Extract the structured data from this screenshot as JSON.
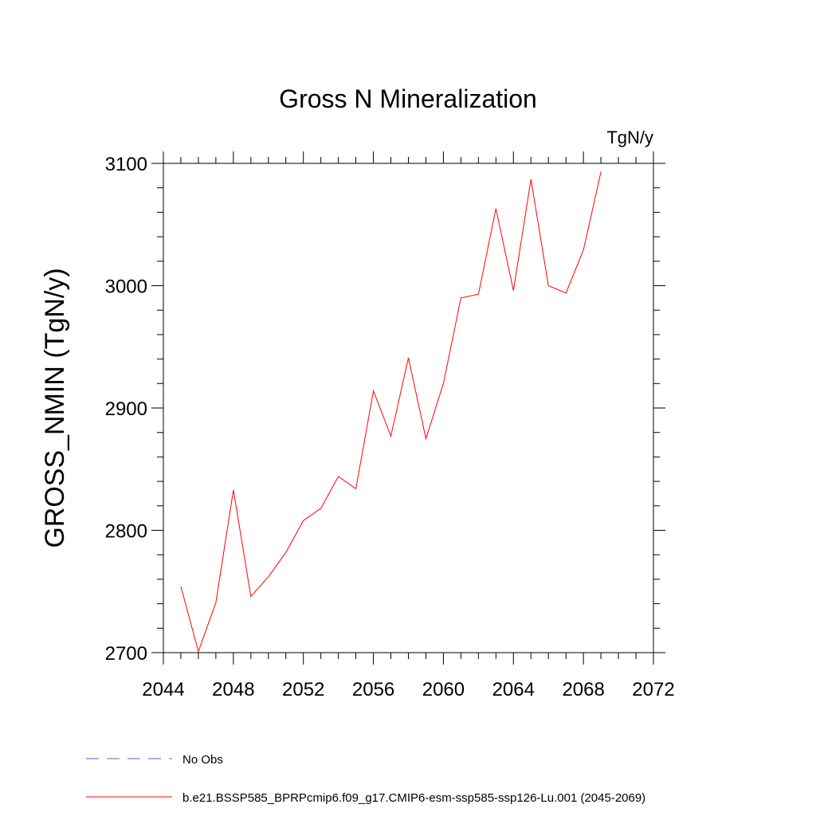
{
  "chart_data": {
    "type": "line",
    "title": "Gross N Mineralization",
    "units_label": "TgN/y",
    "ylabel": "GROSS_NMIN  (TgN/y)",
    "xlabel": "",
    "xlim": [
      2044,
      2072
    ],
    "ylim": [
      2700,
      3100
    ],
    "x_ticks": [
      "2044",
      "2048",
      "2052",
      "2056",
      "2060",
      "2064",
      "2068",
      "2072"
    ],
    "y_ticks": [
      "2700",
      "2800",
      "2900",
      "3000",
      "3100"
    ],
    "grid": false,
    "x": [
      2045,
      2046,
      2047,
      2048,
      2049,
      2050,
      2051,
      2052,
      2053,
      2054,
      2055,
      2056,
      2057,
      2058,
      2059,
      2060,
      2061,
      2062,
      2063,
      2064,
      2065,
      2066,
      2067,
      2068,
      2069
    ],
    "series": [
      {
        "name": "b.e21.BSSP585_BPRPcmip6.f09_g17.CMIP6-esm-ssp585-ssp126-Lu.001 (2045-2069)",
        "color": "#ff0000",
        "values": [
          2754,
          2701,
          2741,
          2833,
          2746,
          2762,
          2782,
          2808,
          2818,
          2844,
          2834,
          2914,
          2877,
          2941,
          2875,
          2920,
          2990,
          2993,
          3063,
          2996,
          3087,
          3000,
          2994,
          3029,
          3093
        ]
      }
    ],
    "legend": {
      "placement": "bottom",
      "entries": [
        {
          "label": "No Obs",
          "color": "#6a5acd",
          "style": "dashed"
        },
        {
          "label": "b.e21.BSSP585_BPRPcmip6.f09_g17.CMIP6-esm-ssp585-ssp126-Lu.001 (2045-2069)",
          "color": "#ff0000",
          "style": "solid"
        }
      ]
    }
  }
}
